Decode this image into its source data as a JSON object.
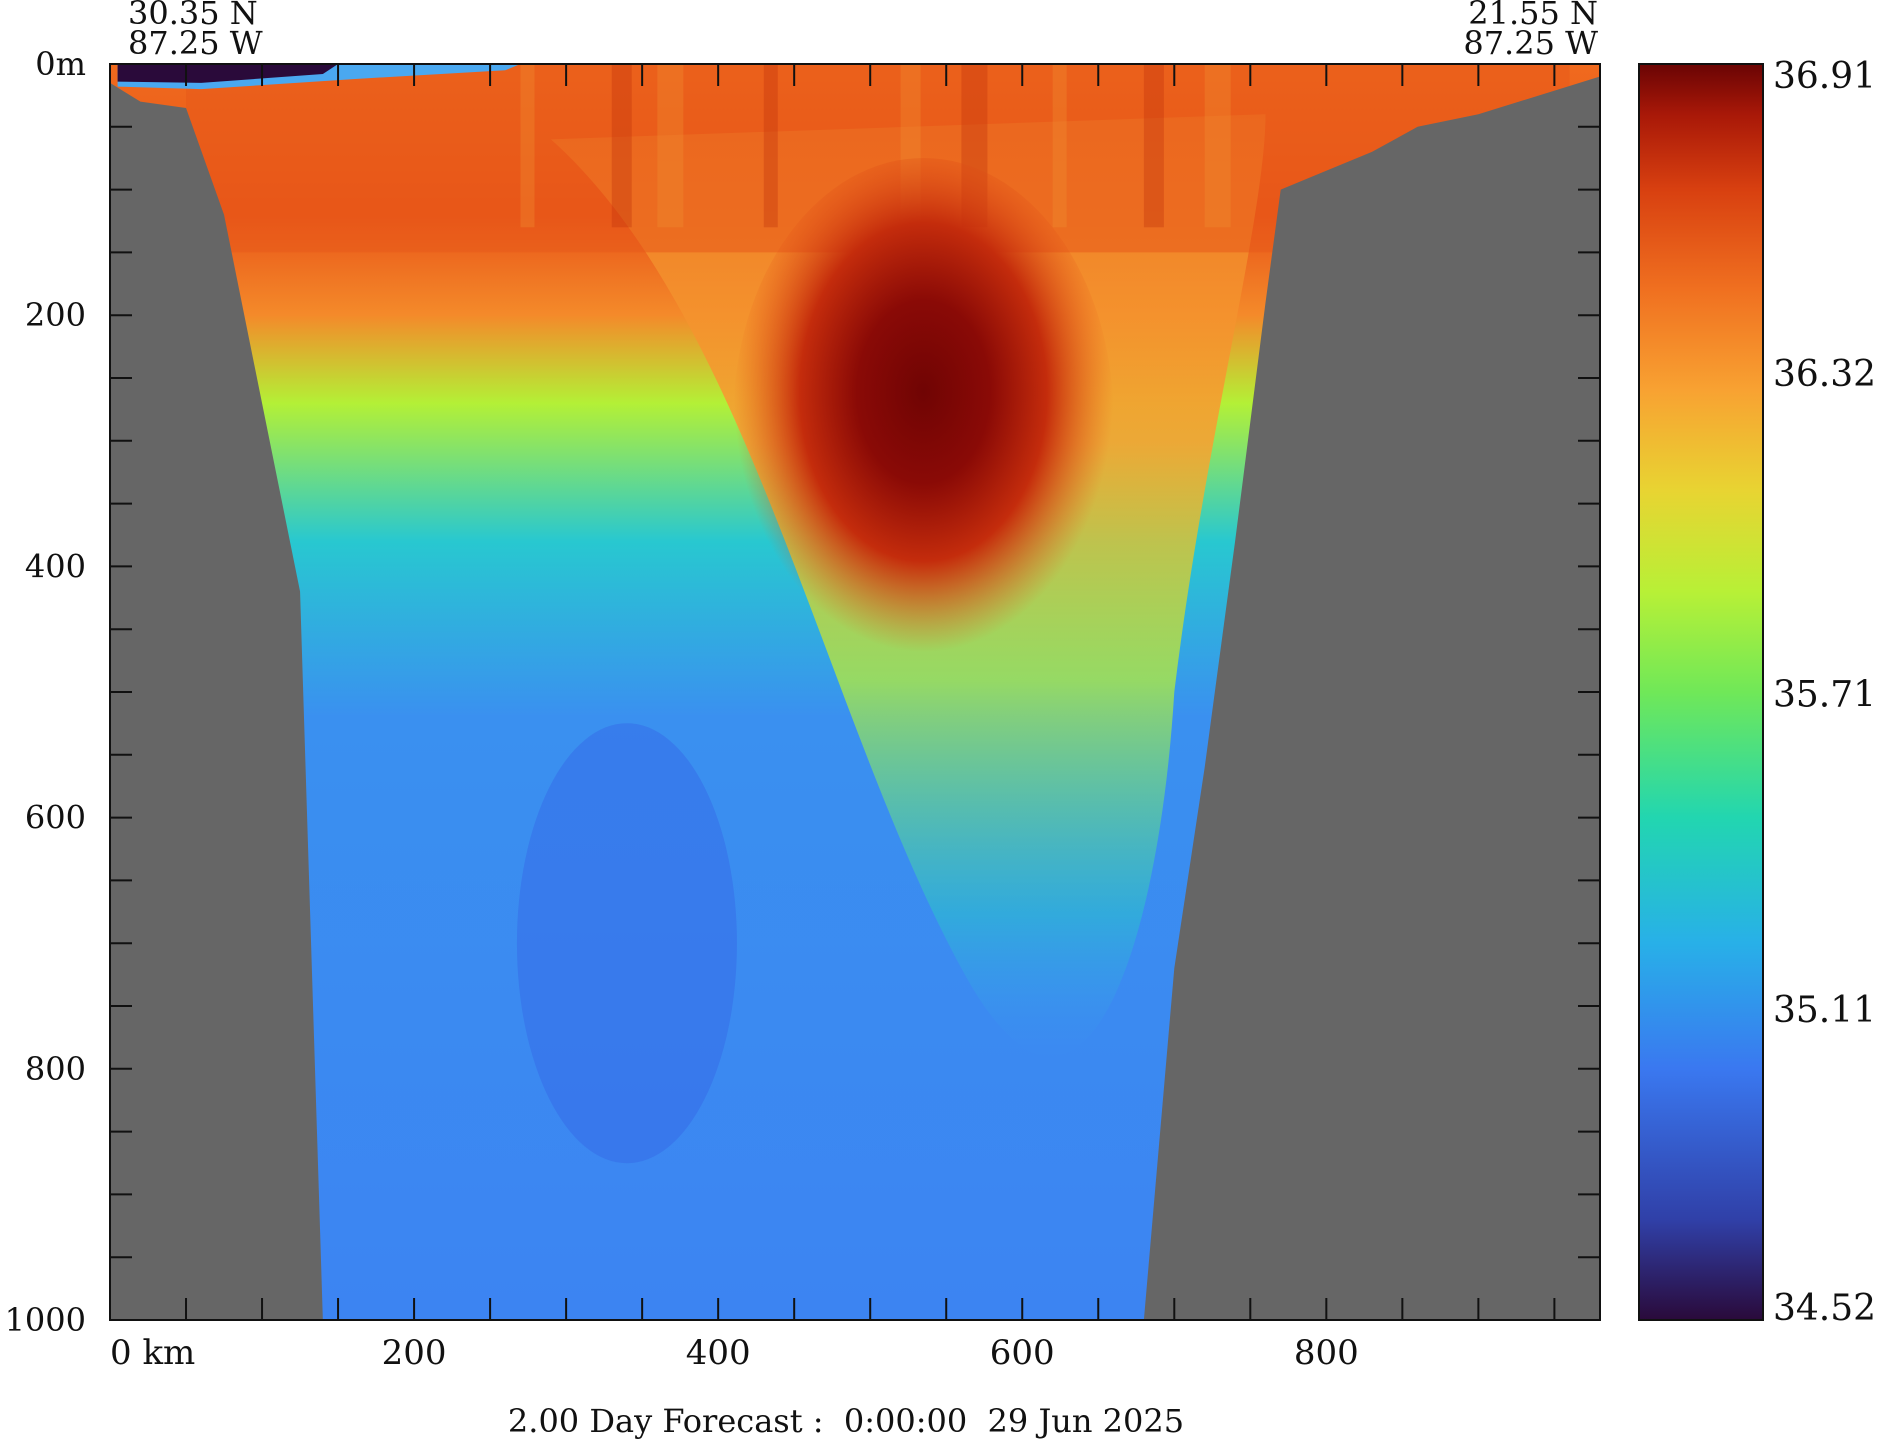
{
  "header": {
    "left_lat": "30.35 N",
    "left_lon": "87.25 W",
    "right_lat": "21.55 N",
    "right_lon": "87.25 W"
  },
  "footer": {
    "caption": "2.00 Day Forecast :  0:00:00  29 Jun 2025"
  },
  "chart_data": {
    "type": "heatmap",
    "title": "",
    "xlabel": "",
    "ylabel": "",
    "x_unit": "km",
    "y_unit": "m",
    "xlim": [
      0,
      980
    ],
    "ylim": [
      1000,
      0
    ],
    "x_ticks": [
      0,
      200,
      400,
      600,
      800
    ],
    "x_tick_labels": [
      "0 km",
      "200",
      "400",
      "600",
      "800"
    ],
    "y_ticks": [
      0,
      200,
      400,
      600,
      800,
      1000
    ],
    "y_tick_labels": [
      "0m",
      "200",
      "400",
      "600",
      "800",
      "1000"
    ],
    "colorbar": {
      "min": 34.52,
      "max": 36.91,
      "tick_labels": [
        "36.91",
        "36.32",
        "35.71",
        "35.11",
        "34.52"
      ],
      "tick_values": [
        36.91,
        36.32,
        35.71,
        35.11,
        34.52
      ],
      "colors": [
        "#2a0a3a",
        "#3040a8",
        "#3a78f0",
        "#28b0e8",
        "#22d6b0",
        "#70e858",
        "#b8f036",
        "#e8d432",
        "#f8a232",
        "#f07020",
        "#d84010",
        "#a81808",
        "#6a0404"
      ]
    },
    "land_color": "#666666",
    "seabed_depth_m": {
      "x": [
        0,
        20,
        50,
        75,
        100,
        125,
        140,
        160,
        260,
        400,
        600,
        680,
        700,
        720,
        740,
        760,
        770,
        790,
        830,
        860,
        900,
        980
      ],
      "depth": [
        15,
        30,
        35,
        120,
        270,
        420,
        1000,
        1000,
        1000,
        1000,
        1000,
        1000,
        720,
        560,
        380,
        190,
        100,
        90,
        70,
        50,
        40,
        10
      ]
    },
    "salinity_features": [
      {
        "name": "surface low-salinity lens",
        "x": [
          5,
          150
        ],
        "depth": [
          0,
          15
        ],
        "value": 34.55
      },
      {
        "name": "upper mixed layer",
        "x": [
          50,
          960
        ],
        "depth": [
          0,
          150
        ],
        "value": 36.45
      },
      {
        "name": "subsurface salinity maximum core",
        "x": [
          490,
          580
        ],
        "depth": [
          170,
          330
        ],
        "value": 36.91
      },
      {
        "name": "deep water",
        "x": [
          200,
          600
        ],
        "depth": [
          600,
          1000
        ],
        "value": 35.0
      }
    ]
  }
}
